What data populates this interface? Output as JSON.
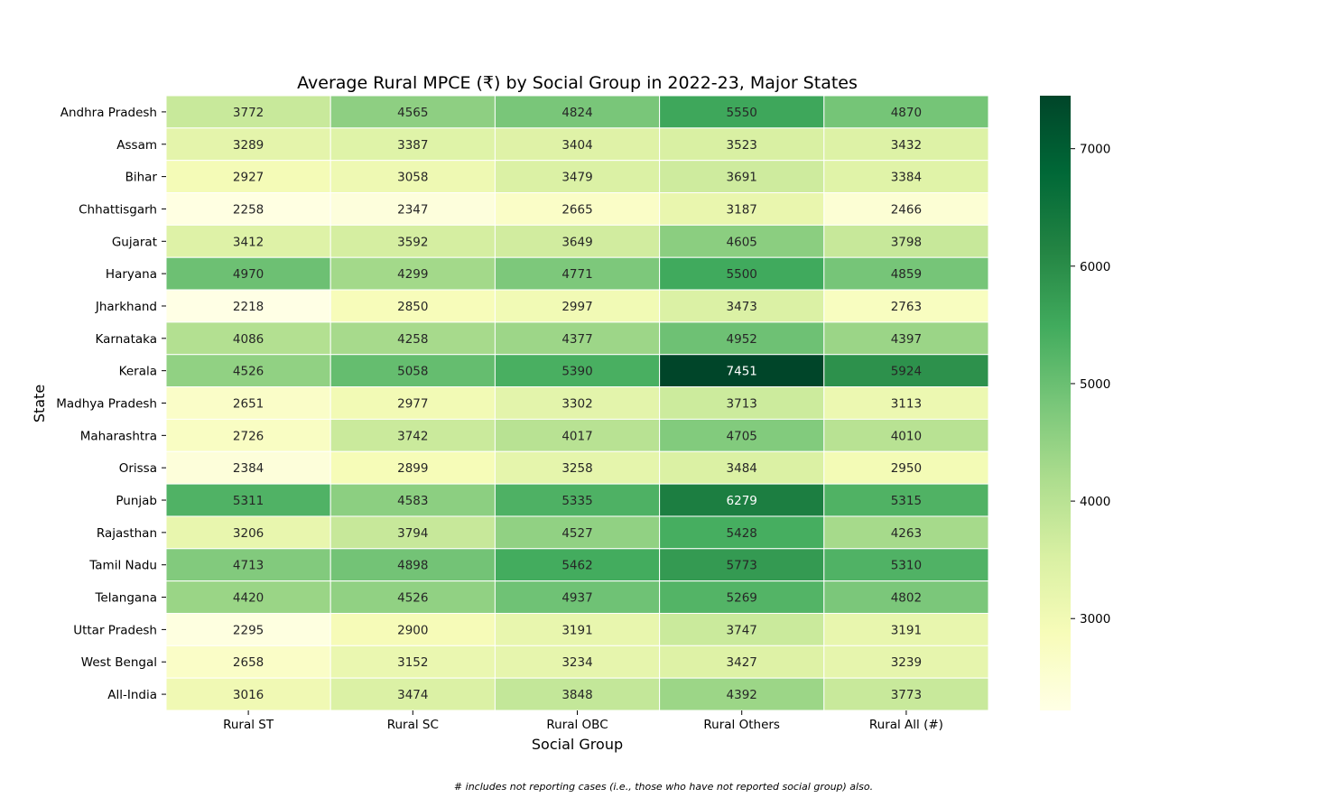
{
  "chart_data": {
    "type": "heatmap",
    "title": "Average Rural MPCE (₹) by Social Group in 2022-23, Major States",
    "xlabel": "Social Group",
    "ylabel": "State",
    "x_categories": [
      "Rural ST",
      "Rural SC",
      "Rural OBC",
      "Rural Others",
      "Rural All (#)"
    ],
    "y_categories": [
      "Andhra Pradesh",
      "Assam",
      "Bihar",
      "Chhattisgarh",
      "Gujarat",
      "Haryana",
      "Jharkhand",
      "Karnataka",
      "Kerala",
      "Madhya Pradesh",
      "Maharashtra",
      "Orissa",
      "Punjab",
      "Rajasthan",
      "Tamil Nadu",
      "Telangana",
      "Uttar Pradesh",
      "West Bengal",
      "All-India"
    ],
    "values": [
      [
        3772,
        4565,
        4824,
        5550,
        4870
      ],
      [
        3289,
        3387,
        3404,
        3523,
        3432
      ],
      [
        2927,
        3058,
        3479,
        3691,
        3384
      ],
      [
        2258,
        2347,
        2665,
        3187,
        2466
      ],
      [
        3412,
        3592,
        3649,
        4605,
        3798
      ],
      [
        4970,
        4299,
        4771,
        5500,
        4859
      ],
      [
        2218,
        2850,
        2997,
        3473,
        2763
      ],
      [
        4086,
        4258,
        4377,
        4952,
        4397
      ],
      [
        4526,
        5058,
        5390,
        7451,
        5924
      ],
      [
        2651,
        2977,
        3302,
        3713,
        3113
      ],
      [
        2726,
        3742,
        4017,
        4705,
        4010
      ],
      [
        2384,
        2899,
        3258,
        3484,
        2950
      ],
      [
        5311,
        4583,
        5335,
        6279,
        5315
      ],
      [
        3206,
        3794,
        4527,
        5428,
        4263
      ],
      [
        4713,
        4898,
        5462,
        5773,
        5310
      ],
      [
        4420,
        4526,
        4937,
        5269,
        4802
      ],
      [
        2295,
        2900,
        3191,
        3747,
        3191
      ],
      [
        2658,
        3152,
        3234,
        3427,
        3239
      ],
      [
        3016,
        3474,
        3848,
        4392,
        3773
      ]
    ],
    "colormap": "YlGn",
    "colorbar": {
      "range": [
        2218,
        7451
      ],
      "ticks": [
        3000,
        4000,
        5000,
        6000,
        7000
      ]
    }
  },
  "footnote": "# includes not reporting cases (i.e., those who have not reported social group) also."
}
